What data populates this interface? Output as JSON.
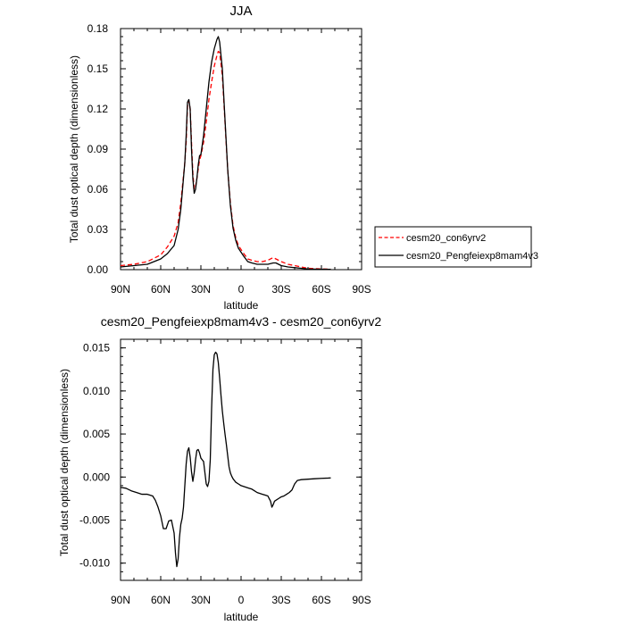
{
  "chart_data": [
    {
      "type": "line",
      "title": "JJA",
      "xlabel": "latitude",
      "ylabel": "Total dust optical depth (dimensionless)",
      "x_axis": "latitude, plotted from 90N (left) to 90S (right); southern latitudes negative",
      "xlim": [
        90,
        -90
      ],
      "ylim": [
        0,
        0.18
      ],
      "xticks": [
        {
          "value": 90,
          "label": "90N"
        },
        {
          "value": 60,
          "label": "60N"
        },
        {
          "value": 30,
          "label": "30N"
        },
        {
          "value": 0,
          "label": "0"
        },
        {
          "value": -30,
          "label": "30S"
        },
        {
          "value": -60,
          "label": "60S"
        },
        {
          "value": -90,
          "label": "90S"
        }
      ],
      "yticks": [
        {
          "value": 0,
          "label": "0.00"
        },
        {
          "value": 0.03,
          "label": "0.03"
        },
        {
          "value": 0.06,
          "label": "0.06"
        },
        {
          "value": 0.09,
          "label": "0.09"
        },
        {
          "value": 0.12,
          "label": "0.12"
        },
        {
          "value": 0.15,
          "label": "0.15"
        },
        {
          "value": 0.18,
          "label": "0.18"
        }
      ],
      "grid": false,
      "legend": "right",
      "series": [
        {
          "name": "cesm20_con6yrv2",
          "color": "#ff0000",
          "dash": "dashed",
          "x": [
            90,
            80,
            70,
            60,
            55,
            50,
            47,
            45,
            42,
            41,
            40,
            39,
            38,
            37,
            36,
            35,
            34,
            33,
            32,
            31,
            30,
            28,
            26,
            24,
            22,
            20,
            18,
            17,
            16,
            14,
            12,
            10,
            8,
            6,
            4,
            2,
            0,
            -2,
            -5,
            -8,
            -12,
            -16,
            -20,
            -24,
            -26,
            -28,
            -30,
            -35,
            -40,
            -45,
            -50,
            -60,
            -67
          ],
          "y": [
            0.003,
            0.004,
            0.006,
            0.011,
            0.017,
            0.025,
            0.035,
            0.05,
            0.08,
            0.095,
            0.122,
            0.126,
            0.12,
            0.095,
            0.072,
            0.06,
            0.062,
            0.068,
            0.075,
            0.082,
            0.085,
            0.095,
            0.11,
            0.127,
            0.14,
            0.152,
            0.16,
            0.163,
            0.162,
            0.145,
            0.11,
            0.075,
            0.05,
            0.033,
            0.024,
            0.018,
            0.015,
            0.012,
            0.008,
            0.007,
            0.006,
            0.006,
            0.007,
            0.009,
            0.008,
            0.007,
            0.006,
            0.004,
            0.003,
            0.002,
            0.001,
            0.0005,
            0.0003
          ]
        },
        {
          "name": "cesm20_Pengfeiexp8mam4v3",
          "color": "#000000",
          "dash": "solid",
          "x": [
            90,
            80,
            70,
            60,
            55,
            50,
            47,
            45,
            42,
            41,
            40,
            39,
            38,
            37,
            36,
            35,
            34,
            33,
            32,
            31,
            30,
            28,
            26,
            24,
            22,
            20,
            18,
            17,
            16,
            14,
            12,
            10,
            8,
            6,
            4,
            2,
            0,
            -2,
            -5,
            -8,
            -12,
            -16,
            -20,
            -24,
            -26,
            -28,
            -30,
            -35,
            -40,
            -45,
            -50,
            -60,
            -67
          ],
          "y": [
            0.002,
            0.003,
            0.004,
            0.008,
            0.012,
            0.018,
            0.03,
            0.045,
            0.08,
            0.1,
            0.125,
            0.127,
            0.12,
            0.09,
            0.068,
            0.057,
            0.06,
            0.068,
            0.078,
            0.085,
            0.086,
            0.1,
            0.12,
            0.14,
            0.155,
            0.165,
            0.172,
            0.174,
            0.17,
            0.15,
            0.112,
            0.075,
            0.048,
            0.031,
            0.022,
            0.016,
            0.013,
            0.01,
            0.006,
            0.005,
            0.004,
            0.004,
            0.004,
            0.005,
            0.005,
            0.004,
            0.003,
            0.002,
            0.0015,
            0.001,
            0.0005,
            0.0003,
            0.0002
          ]
        }
      ]
    },
    {
      "type": "line",
      "title": "cesm20_Pengfeiexp8mam4v3 - cesm20_con6yrv2",
      "xlabel": "latitude",
      "ylabel": "Total dust optical depth (dimensionless)",
      "x_axis": "latitude, plotted from 90N (left) to 90S (right); southern latitudes negative",
      "xlim": [
        90,
        -90
      ],
      "ylim": [
        -0.012,
        0.016
      ],
      "xticks": [
        {
          "value": 90,
          "label": "90N"
        },
        {
          "value": 60,
          "label": "60N"
        },
        {
          "value": 30,
          "label": "30N"
        },
        {
          "value": 0,
          "label": "0"
        },
        {
          "value": -30,
          "label": "30S"
        },
        {
          "value": -60,
          "label": "60S"
        },
        {
          "value": -90,
          "label": "90S"
        }
      ],
      "yticks": [
        {
          "value": 0.015,
          "label": "0.015"
        },
        {
          "value": 0.01,
          "label": "0.010"
        },
        {
          "value": 0.005,
          "label": "0.005"
        },
        {
          "value": 0,
          "label": "0.000"
        },
        {
          "value": -0.005,
          "label": "-0.005"
        },
        {
          "value": -0.01,
          "label": "-0.010"
        }
      ],
      "grid": false,
      "legend": "none",
      "series": [
        {
          "color": "#000000",
          "dash": "solid",
          "x": [
            90,
            86,
            82,
            78,
            74,
            70,
            66,
            64,
            62,
            60,
            58,
            56,
            54,
            52,
            50,
            49,
            48,
            47,
            46,
            45,
            44,
            43,
            42,
            41,
            40,
            39,
            38,
            37,
            36,
            35,
            34,
            33,
            32,
            31,
            30,
            29,
            28,
            27,
            26,
            25,
            24,
            23,
            22,
            21,
            20,
            19,
            18,
            17,
            16,
            15,
            14,
            13,
            12,
            11,
            10,
            9,
            8,
            7,
            6,
            5,
            4,
            2,
            0,
            -2,
            -4,
            -6,
            -8,
            -10,
            -12,
            -14,
            -16,
            -18,
            -20,
            -21,
            -22,
            -23,
            -24,
            -25,
            -26,
            -28,
            -30,
            -32,
            -34,
            -36,
            -38,
            -40,
            -42,
            -45,
            -50,
            -55,
            -60,
            -65,
            -67
          ],
          "y": [
            -0.0012,
            -0.0013,
            -0.0016,
            -0.0018,
            -0.002,
            -0.002,
            -0.0022,
            -0.0027,
            -0.0035,
            -0.0045,
            -0.006,
            -0.006,
            -0.0051,
            -0.005,
            -0.0065,
            -0.0088,
            -0.0104,
            -0.0095,
            -0.007,
            -0.0055,
            -0.0048,
            -0.0035,
            -0.001,
            0.0015,
            0.003,
            0.0034,
            0.0023,
            0.0006,
            -0.0005,
            0.0005,
            0.002,
            0.0031,
            0.0032,
            0.0028,
            0.0022,
            0.002,
            0.0018,
            0.0005,
            -0.0008,
            -0.0011,
            -0.0005,
            0.002,
            0.008,
            0.0125,
            0.0142,
            0.0145,
            0.0143,
            0.0133,
            0.0115,
            0.0095,
            0.0077,
            0.0063,
            0.005,
            0.0038,
            0.0025,
            0.0012,
            0.0005,
            0.0001,
            -0.0002,
            -0.0004,
            -0.0006,
            -0.0008,
            -0.001,
            -0.0011,
            -0.0012,
            -0.0013,
            -0.0014,
            -0.0016,
            -0.0018,
            -0.0019,
            -0.002,
            -0.0021,
            -0.0022,
            -0.0025,
            -0.0028,
            -0.0035,
            -0.0032,
            -0.0028,
            -0.0027,
            -0.0025,
            -0.0023,
            -0.0022,
            -0.002,
            -0.0018,
            -0.0015,
            -0.0008,
            -0.0004,
            -0.0003,
            -0.00025,
            -0.0002,
            -0.00015,
            -0.00012,
            -0.0001
          ]
        }
      ]
    }
  ]
}
